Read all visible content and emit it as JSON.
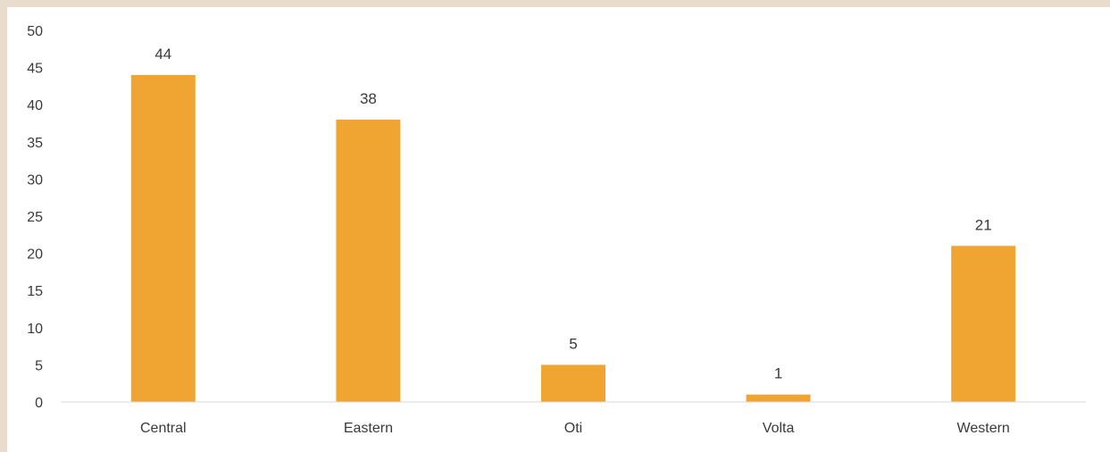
{
  "chart_data": {
    "type": "bar",
    "title": "",
    "xlabel": "",
    "ylabel": "",
    "categories": [
      "Central",
      "Eastern",
      "Oti",
      "Volta",
      "Western"
    ],
    "values": [
      44,
      38,
      5,
      1,
      21
    ],
    "data_labels": [
      "44",
      "38",
      "5",
      "1",
      "21"
    ],
    "ylim": [
      0,
      50
    ],
    "yticks": [
      "0",
      "5",
      "10",
      "15",
      "20",
      "25",
      "30",
      "35",
      "40",
      "45",
      "50"
    ],
    "ytick_values": [
      0,
      5,
      10,
      15,
      20,
      25,
      30,
      35,
      40,
      45,
      50
    ],
    "grid": false,
    "legend": "none",
    "bar_color": "#f0a532",
    "axis_color": "#d9d9d9",
    "background": "#ffffff",
    "border_color": "#e8dccd"
  }
}
